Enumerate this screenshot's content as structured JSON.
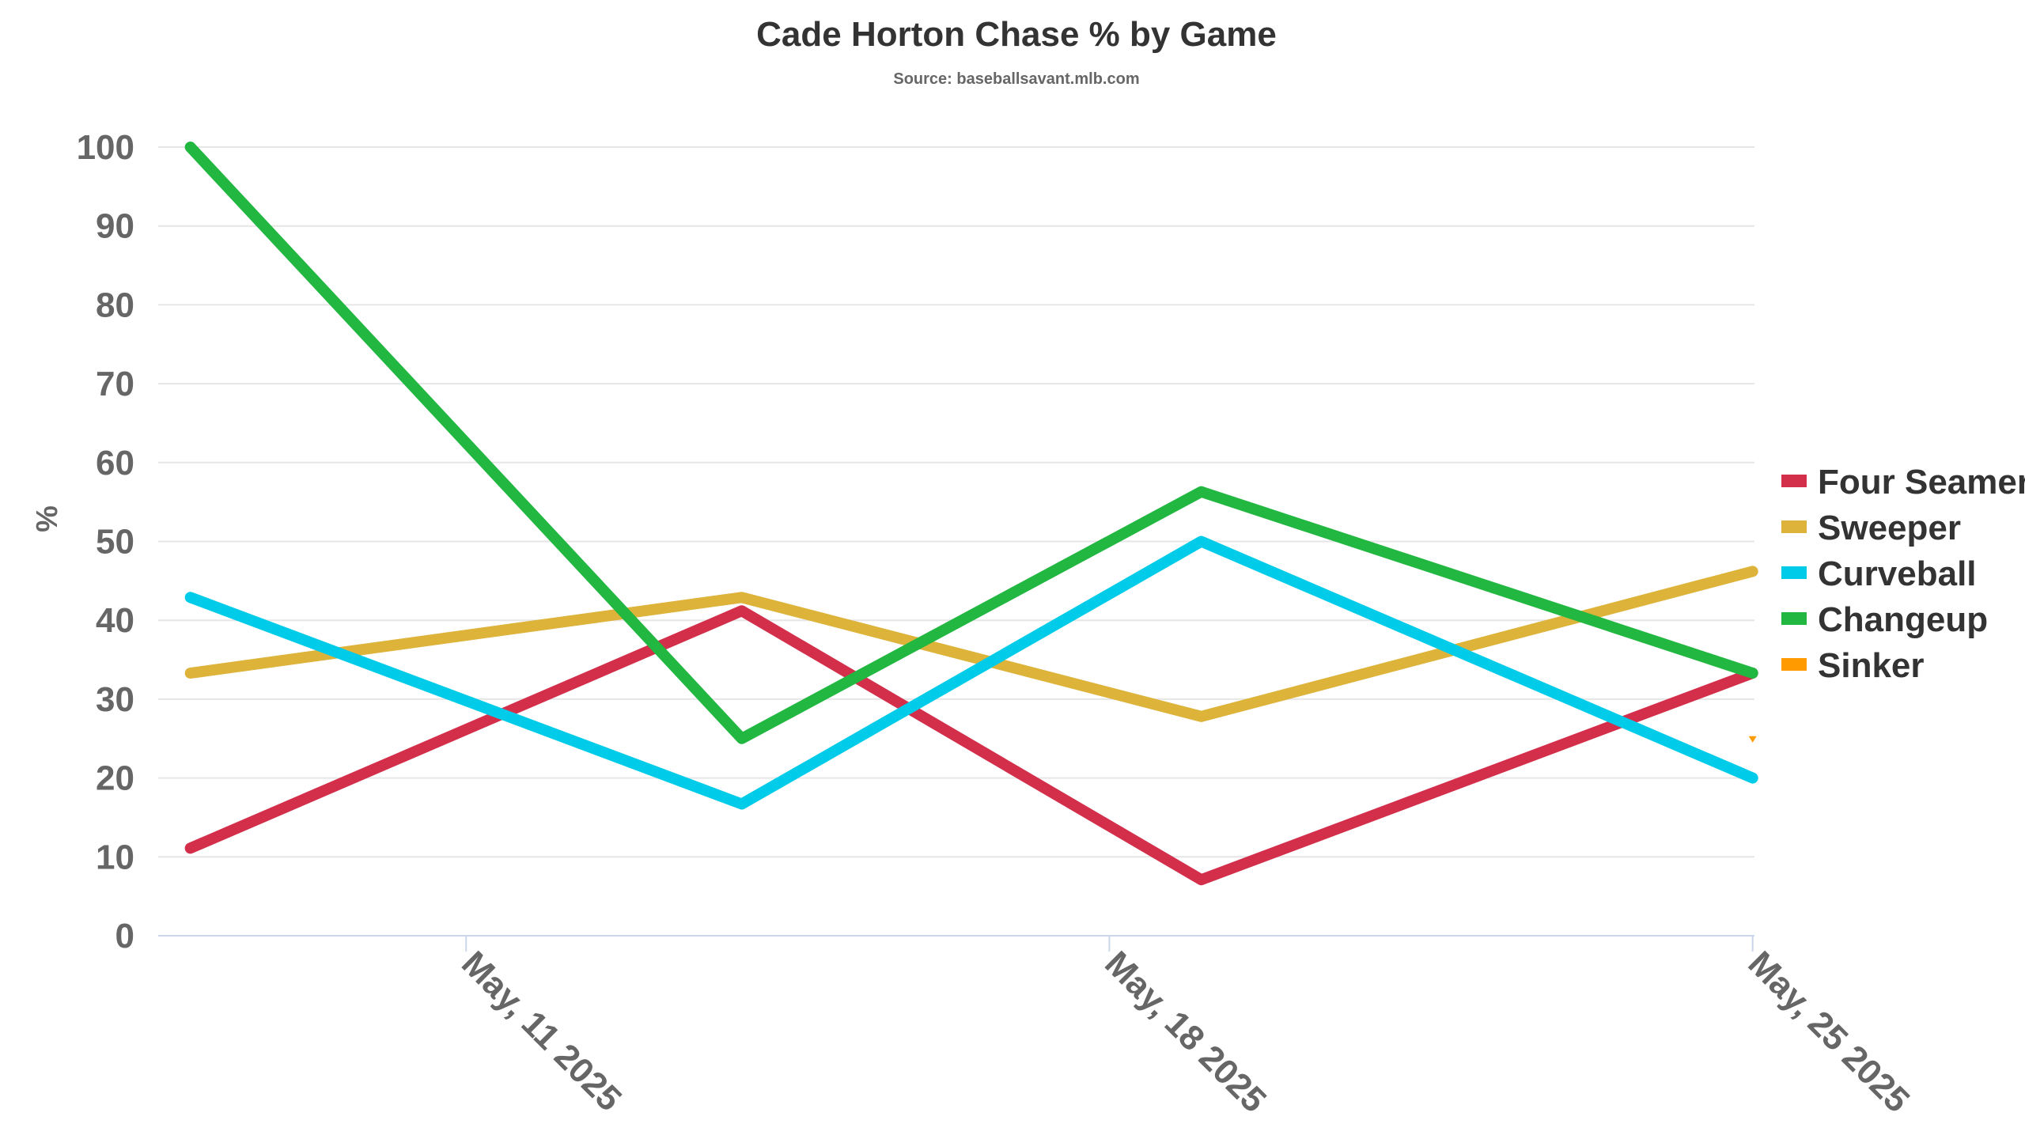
{
  "chart_data": {
    "type": "line",
    "title": "Cade Horton Chase % by Game",
    "subtitle": "Source: baseballsavant.mlb.com",
    "xlabel": "",
    "ylabel": "%",
    "ylim": [
      0,
      100
    ],
    "yticks": [
      0,
      10,
      20,
      30,
      40,
      50,
      60,
      70,
      80,
      90,
      100
    ],
    "x_games": [
      "2025-05-08",
      "2025-05-14",
      "2025-05-19",
      "2025-05-25"
    ],
    "xticks": [
      {
        "label": "May, 11 2025",
        "date": "2025-05-11"
      },
      {
        "label": "May, 18 2025",
        "date": "2025-05-18"
      },
      {
        "label": "May, 25 2025",
        "date": "2025-05-25"
      }
    ],
    "grid": true,
    "legend_position": "right",
    "series": [
      {
        "name": "Four Seamer",
        "color": "#d32f4b",
        "values": [
          11.1,
          41.2,
          7.1,
          33.3
        ]
      },
      {
        "name": "Sweeper",
        "color": "#ddb33a",
        "values": [
          33.3,
          42.9,
          27.8,
          46.2
        ]
      },
      {
        "name": "Curveball",
        "color": "#00ccea",
        "values": [
          42.9,
          16.7,
          50.0,
          20.0
        ]
      },
      {
        "name": "Changeup",
        "color": "#21b740",
        "values": [
          100,
          25.0,
          56.3,
          33.3
        ]
      },
      {
        "name": "Sinker",
        "color": "#ff9a00",
        "values": [
          null,
          null,
          null,
          25.0
        ]
      }
    ]
  }
}
